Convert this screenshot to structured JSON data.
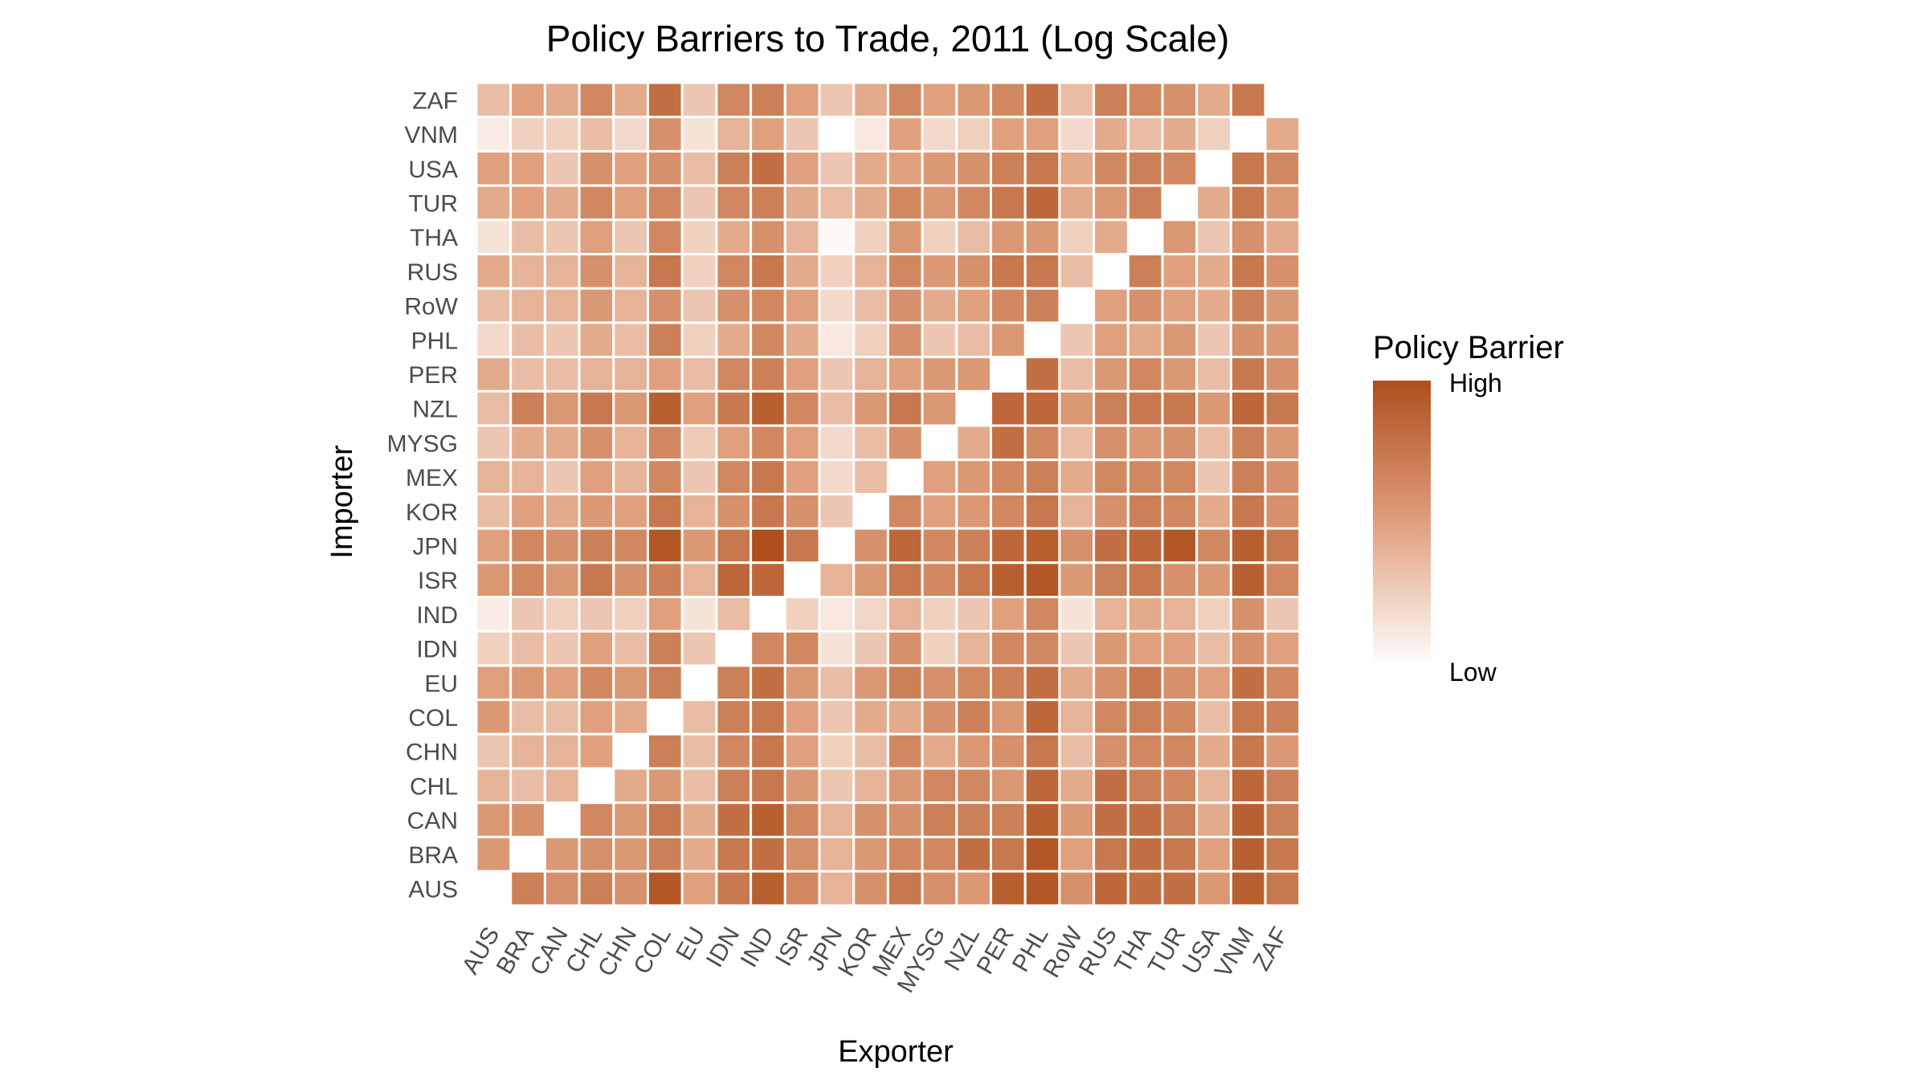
{
  "chart_data": {
    "type": "heatmap",
    "title": "Policy Barriers to Trade, 2011 (Log Scale)",
    "xlabel": "Exporter",
    "ylabel": "Importer",
    "x_categories": [
      "AUS",
      "BRA",
      "CAN",
      "CHL",
      "CHN",
      "COL",
      "EU",
      "IDN",
      "IND",
      "ISR",
      "JPN",
      "KOR",
      "MEX",
      "MYSG",
      "NZL",
      "PER",
      "PHL",
      "RoW",
      "RUS",
      "THA",
      "TUR",
      "USA",
      "VNM",
      "ZAF"
    ],
    "y_categories_top_to_bottom": [
      "ZAF",
      "VNM",
      "USA",
      "TUR",
      "THA",
      "RUS",
      "RoW",
      "PHL",
      "PER",
      "NZL",
      "MYSG",
      "MEX",
      "KOR",
      "JPN",
      "ISR",
      "IND",
      "IDN",
      "EU",
      "COL",
      "CHN",
      "CHL",
      "CAN",
      "BRA",
      "AUS"
    ],
    "value_scale": "relative policy barrier, 0 = low, 10 = high (log scale)",
    "values": [
      [
        3.5,
        5,
        4.5,
        6.5,
        4.5,
        8,
        3,
        6.5,
        7,
        5,
        3,
        4.5,
        6.5,
        5,
        5.5,
        6.5,
        8,
        3.5,
        7,
        6.5,
        6,
        4.5,
        7.5,
        null
      ],
      [
        1,
        2.5,
        2.5,
        3.5,
        2,
        6,
        1.5,
        4,
        5,
        3,
        null,
        1.2,
        5,
        2,
        2.5,
        5,
        5,
        2,
        4.5,
        3.5,
        4.5,
        2.5,
        null,
        4.5
      ],
      [
        5,
        5,
        3,
        6,
        5,
        6,
        3.5,
        7,
        8,
        5,
        3,
        4.5,
        5,
        5.5,
        6,
        7,
        7.5,
        4.5,
        6.5,
        7,
        6.5,
        null,
        7.5,
        6.5
      ],
      [
        4.5,
        5,
        4.5,
        6.5,
        5,
        6.5,
        3,
        6.5,
        7,
        4.5,
        3.5,
        4.5,
        6.5,
        5.5,
        6.5,
        7.5,
        8.5,
        4.5,
        5.5,
        7,
        null,
        4.5,
        7.5,
        5.5
      ],
      [
        1.5,
        3.5,
        3,
        5,
        3,
        6.5,
        2.5,
        4.5,
        6,
        4,
        0.3,
        2.5,
        5.5,
        2.5,
        3.5,
        5.5,
        5.5,
        2.5,
        4.5,
        null,
        5.5,
        3,
        6,
        4.5
      ],
      [
        4.5,
        4,
        4,
        6,
        4,
        7.5,
        2.5,
        6.5,
        7.5,
        4.5,
        2.5,
        4,
        6.5,
        5.5,
        6,
        7.5,
        7.5,
        3.5,
        null,
        7,
        5,
        4.5,
        7.5,
        6
      ],
      [
        3.5,
        4,
        4,
        5.5,
        4,
        6,
        3,
        6,
        6.5,
        5,
        2,
        3.5,
        6,
        4.5,
        5,
        6.5,
        7,
        null,
        5,
        6,
        5,
        4.5,
        7,
        5.5
      ],
      [
        2,
        3.5,
        3,
        4.5,
        3.5,
        7,
        2.5,
        4.5,
        6.5,
        4.5,
        1.2,
        2.5,
        6,
        3,
        3.5,
        5.5,
        null,
        3,
        5,
        4.5,
        5.5,
        3,
        6,
        5.5
      ],
      [
        4.5,
        3.5,
        3.5,
        4,
        4,
        5,
        3.5,
        6.5,
        7,
        5,
        3,
        4,
        5,
        5.5,
        5.5,
        null,
        8,
        3.5,
        5.5,
        6.5,
        5.5,
        3.5,
        7.5,
        6
      ],
      [
        3.5,
        7,
        5.5,
        7.5,
        5.5,
        9,
        5,
        7.5,
        9,
        6.5,
        3.5,
        5.5,
        7.5,
        5.5,
        null,
        8.5,
        8.5,
        5.5,
        7,
        7.5,
        7.5,
        5.5,
        8.5,
        7.5
      ],
      [
        3,
        4.5,
        4.5,
        6,
        4,
        6.5,
        2.8,
        5,
        6.5,
        5,
        2,
        3.5,
        6,
        null,
        4.5,
        8,
        6.5,
        3.5,
        6,
        5.5,
        6,
        3.5,
        7,
        5.5
      ],
      [
        4,
        4,
        3,
        5,
        4,
        6.5,
        3,
        6.5,
        7.5,
        5,
        2,
        3.5,
        null,
        5,
        5.5,
        6.5,
        7,
        4.5,
        6.5,
        6.5,
        6.5,
        3,
        7,
        6
      ],
      [
        3.5,
        5,
        4.5,
        5.5,
        5,
        7.5,
        4,
        6,
        7.5,
        6,
        3,
        null,
        6.5,
        5,
        5.5,
        6.5,
        7.5,
        4,
        6,
        7,
        6.5,
        4.5,
        7.5,
        6
      ],
      [
        5,
        6.5,
        6,
        7,
        6.5,
        9.5,
        5.5,
        7.5,
        10,
        7.5,
        null,
        6,
        8.5,
        6.5,
        7,
        8.5,
        9,
        6,
        8,
        8.5,
        9.5,
        6.5,
        9,
        7.5
      ],
      [
        5.5,
        6.5,
        5.5,
        7.5,
        6,
        7,
        4,
        8.5,
        8.5,
        null,
        4,
        5.5,
        7.5,
        6.5,
        7.5,
        9,
        9.5,
        5.5,
        7,
        7.5,
        6,
        5.5,
        9,
        6.5
      ],
      [
        1,
        3,
        2.5,
        3,
        2.5,
        5,
        1.5,
        3.5,
        null,
        2.5,
        1.2,
        2.2,
        4,
        2.5,
        3,
        5,
        6.5,
        1.5,
        4,
        4.5,
        4,
        2.5,
        6,
        3
      ],
      [
        2.5,
        3.5,
        3,
        5,
        3.5,
        7,
        3,
        null,
        6.5,
        6.5,
        1.5,
        3,
        6,
        2.5,
        4,
        6.5,
        6.5,
        3,
        5.5,
        5,
        5,
        3.5,
        6,
        5
      ],
      [
        5,
        5.5,
        5,
        6.5,
        5.5,
        7,
        null,
        7,
        8,
        5.5,
        3.5,
        5.5,
        7,
        6,
        6.5,
        7,
        8,
        4.5,
        6,
        7.5,
        6,
        5,
        8,
        6.5
      ],
      [
        5.5,
        3.5,
        3.5,
        5,
        4.5,
        null,
        3.5,
        7,
        7.5,
        5,
        3,
        4.5,
        4.5,
        6,
        7,
        5.5,
        8.5,
        4,
        6.5,
        7,
        6.5,
        3.5,
        7.5,
        7
      ],
      [
        3,
        4,
        4,
        5,
        null,
        7,
        3.5,
        6.5,
        7.5,
        5,
        2.5,
        3.5,
        6.5,
        4.5,
        5.5,
        6,
        7.5,
        3.5,
        6,
        6.5,
        6.5,
        4.5,
        7.5,
        5.5
      ],
      [
        4,
        3.5,
        4,
        null,
        4.5,
        5.5,
        3.5,
        7,
        7.5,
        5.5,
        3,
        4,
        5.5,
        6.5,
        6.5,
        5.5,
        8.5,
        4.5,
        8,
        7,
        6.5,
        4,
        8.5,
        7
      ],
      [
        5.5,
        6,
        null,
        6.5,
        5.5,
        7.5,
        4.5,
        8,
        9,
        6.5,
        4,
        6,
        6,
        7,
        7,
        7,
        9,
        5.5,
        8,
        8,
        7,
        4.5,
        9,
        7
      ],
      [
        5.5,
        null,
        5.5,
        6,
        5.5,
        7,
        4.5,
        7.5,
        8,
        6,
        4,
        5.5,
        6.5,
        6.5,
        8,
        7.5,
        9.5,
        5,
        7.5,
        8,
        7.5,
        5,
        9,
        7.5
      ],
      [
        null,
        7,
        6,
        7,
        6,
        9.5,
        5,
        7.5,
        9,
        6.5,
        4,
        6,
        7.5,
        6,
        5.5,
        9,
        9.5,
        6,
        8.5,
        8,
        8,
        5.5,
        9,
        7.5
      ]
    ],
    "legend": {
      "title": "Policy Barrier",
      "high_label": "High",
      "low_label": "Low",
      "placement": "right"
    },
    "colors": {
      "low": "#ffffff",
      "mid": "#e0a07e",
      "high": "#ae4f1d",
      "missing": "#ffffff"
    }
  }
}
